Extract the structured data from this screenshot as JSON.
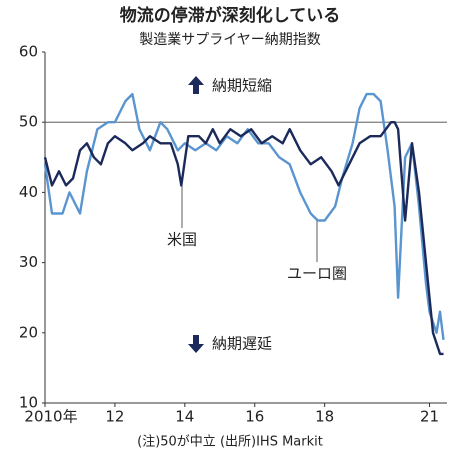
{
  "chart_data": {
    "type": "line",
    "title": "物流の停滞が深刻化している",
    "subtitle": "製造業サプライヤー納期指数",
    "annotations": {
      "up": "納期短縮",
      "down": "納期遅延",
      "us": "米国",
      "euro": "ユーロ圏"
    },
    "note": "(注)50が中立 (出所)IHS Markit",
    "xlim": [
      2010,
      2021.5
    ],
    "xticks": [
      {
        "value": 2010,
        "label": "2010年"
      },
      {
        "value": 2012,
        "label": "12"
      },
      {
        "value": 2014,
        "label": "14"
      },
      {
        "value": 2016,
        "label": "16"
      },
      {
        "value": 2018,
        "label": "18"
      },
      {
        "value": 2021,
        "label": "21"
      }
    ],
    "ylim": [
      10,
      60
    ],
    "yticks": [
      10,
      20,
      30,
      40,
      50,
      60
    ],
    "hline": 50,
    "series": [
      {
        "name": "米国",
        "color": "#1b2a5a",
        "x": [
          2010.0,
          2010.2,
          2010.4,
          2010.6,
          2010.8,
          2011.0,
          2011.2,
          2011.4,
          2011.6,
          2011.8,
          2012.0,
          2012.3,
          2012.5,
          2012.8,
          2013.0,
          2013.3,
          2013.6,
          2013.8,
          2013.9,
          2014.1,
          2014.4,
          2014.6,
          2014.8,
          2015.0,
          2015.3,
          2015.6,
          2015.9,
          2016.2,
          2016.5,
          2016.8,
          2017.0,
          2017.3,
          2017.6,
          2017.9,
          2018.2,
          2018.4,
          2018.7,
          2019.0,
          2019.3,
          2019.6,
          2019.9,
          2020.0,
          2020.1,
          2020.3,
          2020.5,
          2020.7,
          2020.9,
          2021.1,
          2021.3,
          2021.4
        ],
        "values": [
          45,
          41,
          43,
          41,
          42,
          46,
          47,
          45,
          44,
          47,
          48,
          47,
          46,
          47,
          48,
          47,
          47,
          44,
          41,
          48,
          48,
          47,
          49,
          47,
          49,
          48,
          49,
          47,
          48,
          47,
          49,
          46,
          44,
          45,
          43,
          41,
          44,
          47,
          48,
          48,
          50,
          50,
          49,
          36,
          47,
          40,
          30,
          20,
          17,
          17
        ]
      },
      {
        "name": "ユーロ圏",
        "color": "#5b95cf",
        "x": [
          2010.0,
          2010.2,
          2010.5,
          2010.7,
          2011.0,
          2011.2,
          2011.5,
          2011.8,
          2012.0,
          2012.3,
          2012.5,
          2012.7,
          2013.0,
          2013.3,
          2013.5,
          2013.8,
          2014.0,
          2014.3,
          2014.6,
          2014.9,
          2015.2,
          2015.5,
          2015.8,
          2016.1,
          2016.4,
          2016.7,
          2017.0,
          2017.3,
          2017.6,
          2017.8,
          2018.0,
          2018.3,
          2018.5,
          2018.8,
          2019.0,
          2019.2,
          2019.4,
          2019.6,
          2019.8,
          2020.0,
          2020.1,
          2020.3,
          2020.5,
          2020.7,
          2020.9,
          2021.0,
          2021.2,
          2021.3,
          2021.4
        ],
        "values": [
          44,
          37,
          37,
          40,
          37,
          43,
          49,
          50,
          50,
          53,
          54,
          49,
          46,
          50,
          49,
          46,
          47,
          46,
          47,
          46,
          48,
          47,
          49,
          47,
          47,
          45,
          44,
          40,
          37,
          36,
          36,
          38,
          42,
          47,
          52,
          54,
          54,
          53,
          46,
          38,
          25,
          45,
          47,
          38,
          27,
          23,
          20,
          23,
          19
        ]
      }
    ]
  }
}
